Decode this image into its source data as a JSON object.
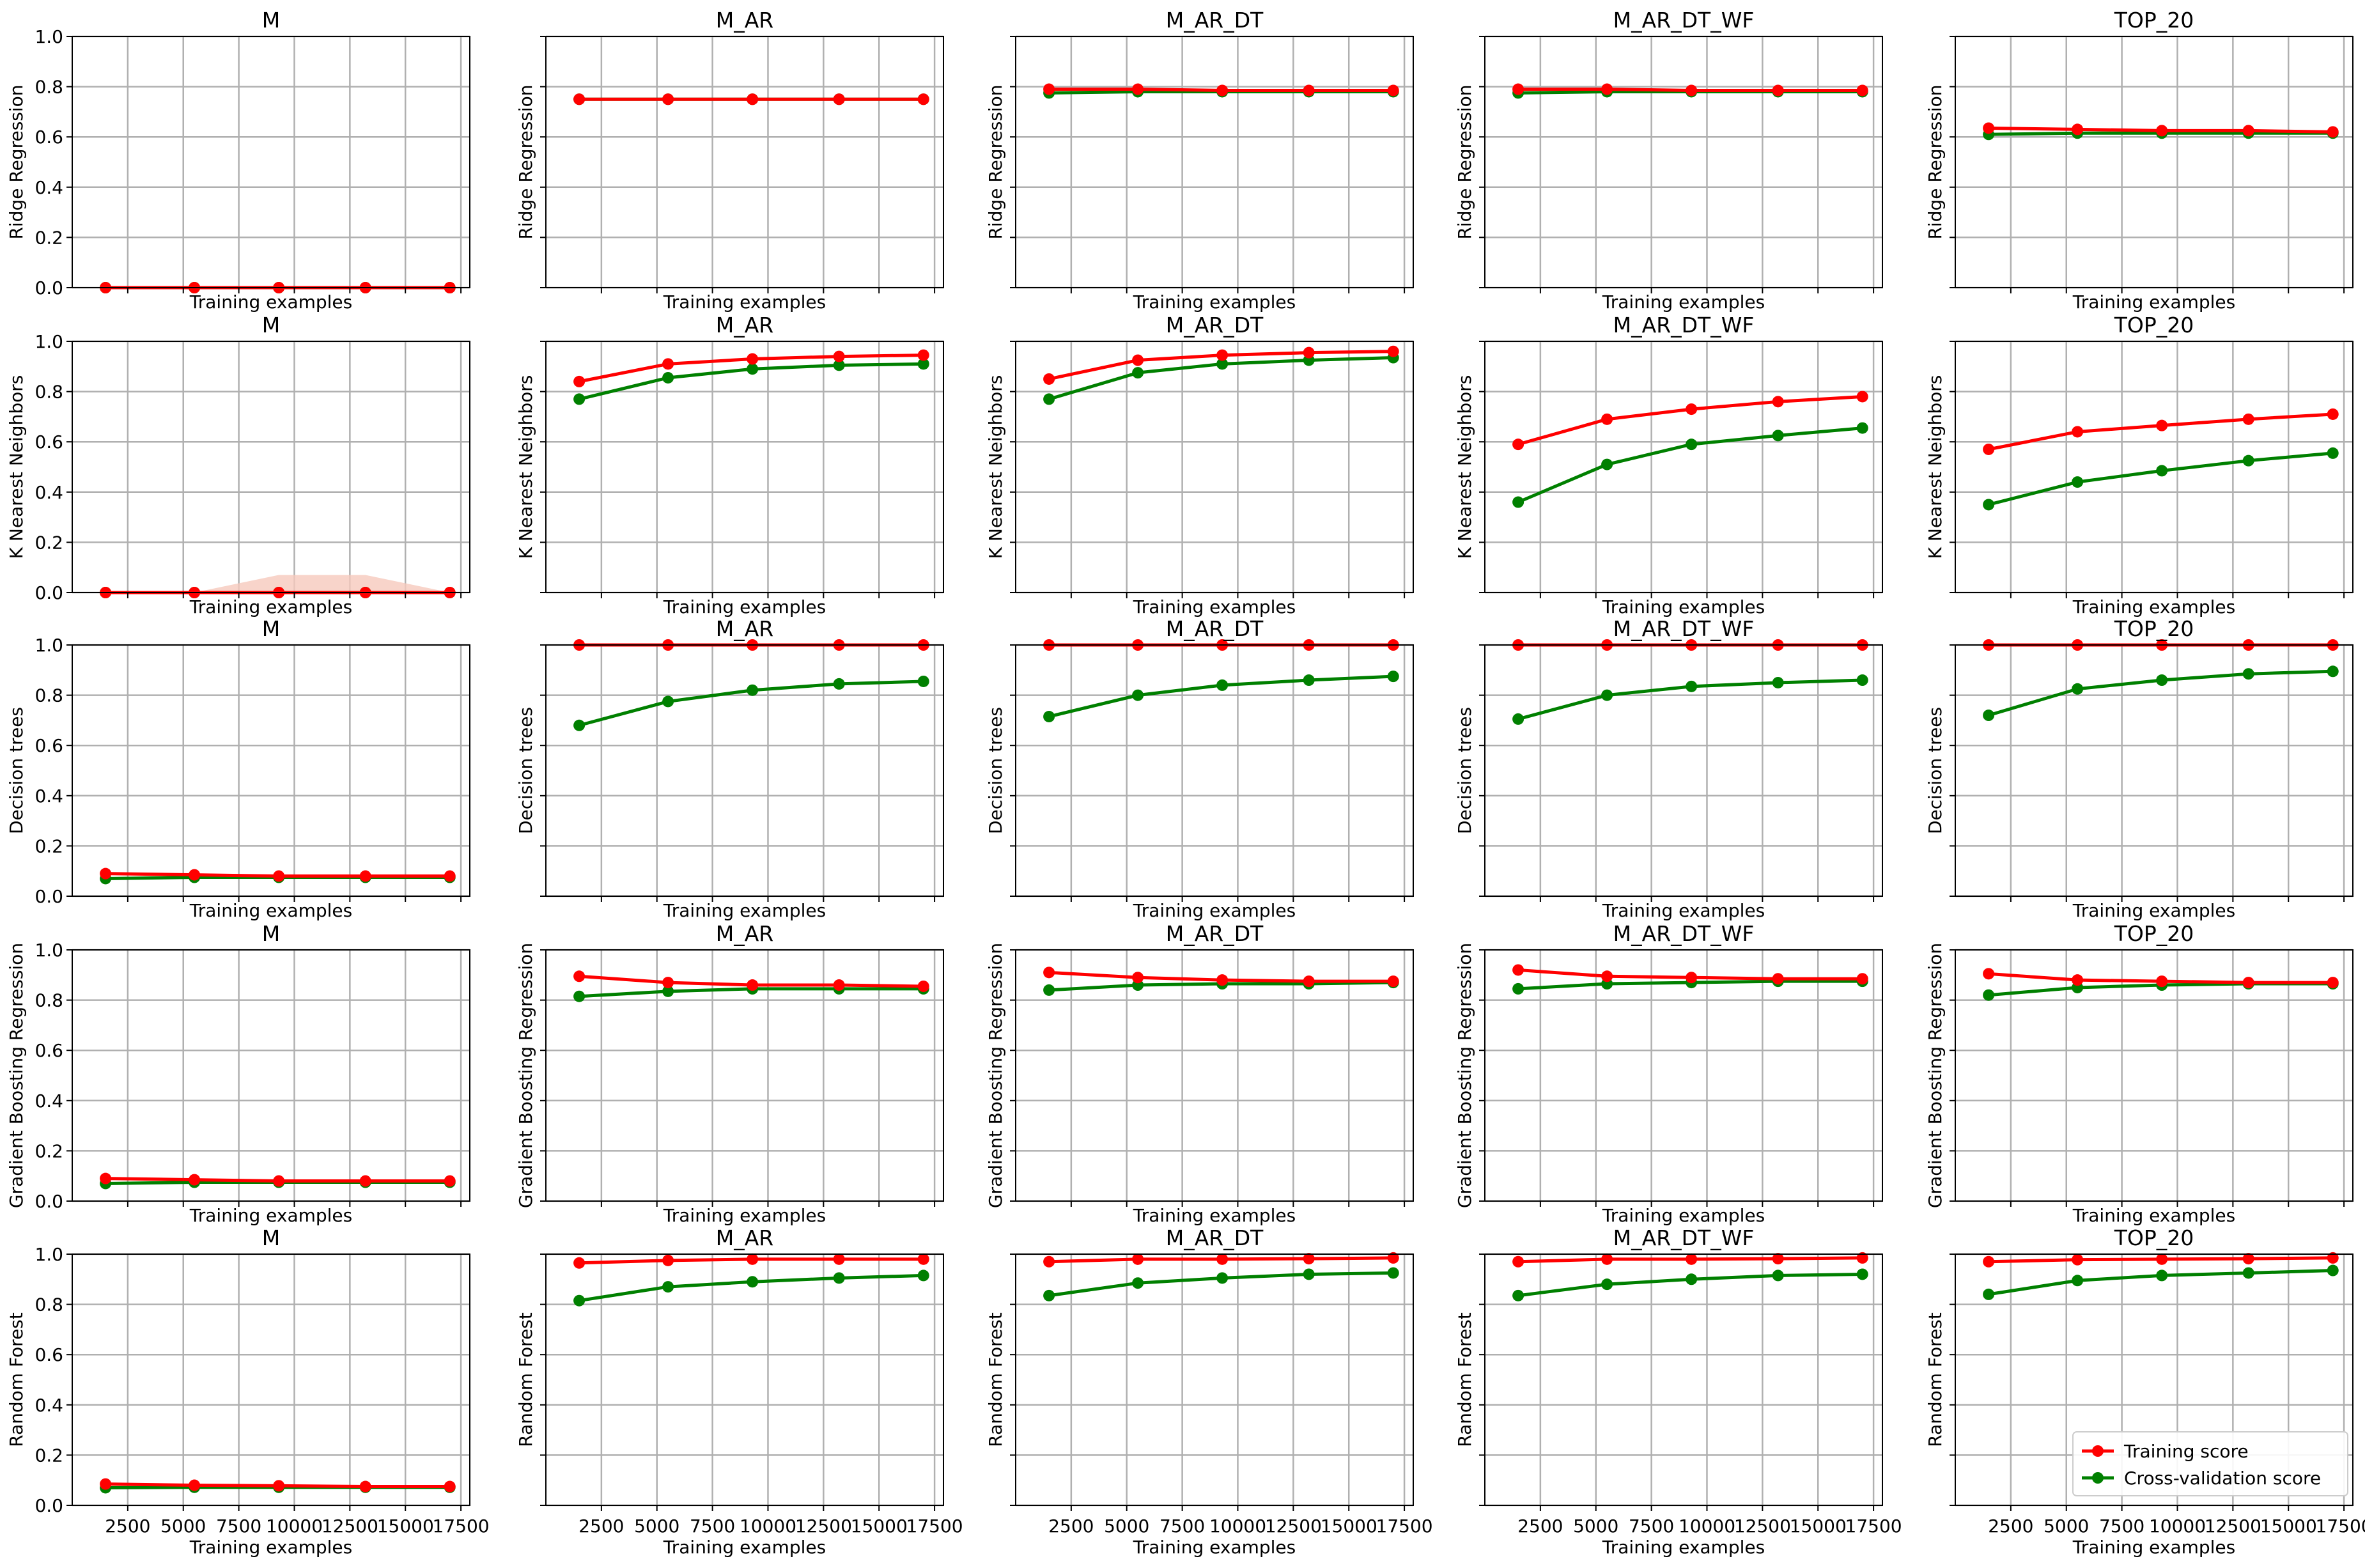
{
  "chart_data": {
    "type": "line",
    "layout": "grid",
    "rows": 5,
    "cols": 5,
    "colors": {
      "train": "#ff0000",
      "cv": "#008000",
      "grid": "#b0b0b0",
      "train_band": "#f6c9bd",
      "cv_band": "#c8e6c8"
    },
    "x": [
      1500,
      5500,
      9300,
      13200,
      17000
    ],
    "xlim": [
      0,
      17900
    ],
    "ylim": [
      0,
      1.0
    ],
    "xticks": [
      2500,
      5000,
      7500,
      10000,
      12500,
      15000,
      17500
    ],
    "yticks": [
      0.0,
      0.2,
      0.4,
      0.6,
      0.8,
      1.0
    ],
    "xticklabels": [
      "2500",
      "5000",
      "7500",
      "10000",
      "12500",
      "15000",
      "17500"
    ],
    "yticklabels": [
      "0.0",
      "0.2",
      "0.4",
      "0.6",
      "0.8",
      "1.0"
    ],
    "xlabel": "Training examples",
    "col_titles": [
      "M",
      "M_AR",
      "M_AR_DT",
      "M_AR_DT_WF",
      "TOP_20"
    ],
    "row_labels": [
      "Ridge Regression",
      "K Nearest Neighbors",
      "Decision trees",
      "Gradient Boosting Regression",
      "Random Forest"
    ],
    "legend": {
      "position": "lower-right",
      "entries": [
        "Training score",
        "Cross-validation score"
      ]
    },
    "panels": [
      [
        {
          "train": [
            0.0,
            0.0,
            0.0,
            0.0,
            0.0
          ],
          "cv": [
            0.0,
            0.0,
            0.0,
            0.0,
            0.0
          ]
        },
        {
          "train": [
            0.75,
            0.75,
            0.75,
            0.75,
            0.75
          ],
          "cv": [
            0.75,
            0.75,
            0.75,
            0.75,
            0.75
          ]
        },
        {
          "train": [
            0.79,
            0.79,
            0.785,
            0.785,
            0.785
          ],
          "cv": [
            0.775,
            0.78,
            0.78,
            0.78,
            0.78
          ]
        },
        {
          "train": [
            0.79,
            0.79,
            0.785,
            0.785,
            0.785
          ],
          "cv": [
            0.775,
            0.78,
            0.78,
            0.78,
            0.78
          ]
        },
        {
          "train": [
            0.635,
            0.63,
            0.625,
            0.625,
            0.62
          ],
          "cv": [
            0.61,
            0.615,
            0.615,
            0.615,
            0.615
          ]
        }
      ],
      [
        {
          "train": [
            0.0,
            0.0,
            0.0,
            0.0,
            0.0
          ],
          "cv": [
            0.0,
            0.0,
            0.0,
            0.0,
            0.0
          ],
          "band": [
            0.0,
            0.0,
            0.07,
            0.07,
            0.0
          ]
        },
        {
          "train": [
            0.84,
            0.91,
            0.93,
            0.94,
            0.945
          ],
          "cv": [
            0.77,
            0.855,
            0.89,
            0.905,
            0.91
          ]
        },
        {
          "train": [
            0.85,
            0.925,
            0.945,
            0.955,
            0.96
          ],
          "cv": [
            0.77,
            0.875,
            0.91,
            0.925,
            0.935
          ]
        },
        {
          "train": [
            0.59,
            0.69,
            0.73,
            0.76,
            0.78
          ],
          "cv": [
            0.36,
            0.51,
            0.59,
            0.625,
            0.655
          ]
        },
        {
          "train": [
            0.57,
            0.64,
            0.665,
            0.69,
            0.71
          ],
          "cv": [
            0.35,
            0.44,
            0.485,
            0.525,
            0.555
          ]
        }
      ],
      [
        {
          "train": [
            0.09,
            0.085,
            0.08,
            0.08,
            0.08
          ],
          "cv": [
            0.07,
            0.075,
            0.075,
            0.075,
            0.075
          ]
        },
        {
          "train": [
            1.0,
            1.0,
            1.0,
            1.0,
            1.0
          ],
          "cv": [
            0.68,
            0.775,
            0.82,
            0.845,
            0.855
          ]
        },
        {
          "train": [
            1.0,
            1.0,
            1.0,
            1.0,
            1.0
          ],
          "cv": [
            0.715,
            0.8,
            0.84,
            0.86,
            0.875
          ]
        },
        {
          "train": [
            1.0,
            1.0,
            1.0,
            1.0,
            1.0
          ],
          "cv": [
            0.705,
            0.8,
            0.835,
            0.85,
            0.86
          ]
        },
        {
          "train": [
            1.0,
            1.0,
            1.0,
            1.0,
            1.0
          ],
          "cv": [
            0.72,
            0.825,
            0.86,
            0.885,
            0.895
          ]
        }
      ],
      [
        {
          "train": [
            0.09,
            0.085,
            0.08,
            0.08,
            0.08
          ],
          "cv": [
            0.07,
            0.075,
            0.075,
            0.075,
            0.075
          ]
        },
        {
          "train": [
            0.895,
            0.87,
            0.86,
            0.86,
            0.855
          ],
          "cv": [
            0.815,
            0.835,
            0.845,
            0.845,
            0.845
          ]
        },
        {
          "train": [
            0.91,
            0.89,
            0.88,
            0.875,
            0.875
          ],
          "cv": [
            0.84,
            0.86,
            0.865,
            0.865,
            0.87
          ]
        },
        {
          "train": [
            0.92,
            0.895,
            0.89,
            0.885,
            0.885
          ],
          "cv": [
            0.845,
            0.865,
            0.87,
            0.875,
            0.875
          ]
        },
        {
          "train": [
            0.905,
            0.88,
            0.875,
            0.87,
            0.87
          ],
          "cv": [
            0.82,
            0.85,
            0.86,
            0.865,
            0.865
          ]
        }
      ],
      [
        {
          "train": [
            0.085,
            0.08,
            0.078,
            0.075,
            0.075
          ],
          "cv": [
            0.07,
            0.072,
            0.072,
            0.072,
            0.072
          ]
        },
        {
          "train": [
            0.965,
            0.975,
            0.98,
            0.98,
            0.98
          ],
          "cv": [
            0.815,
            0.87,
            0.89,
            0.905,
            0.915
          ]
        },
        {
          "train": [
            0.97,
            0.98,
            0.98,
            0.982,
            0.985
          ],
          "cv": [
            0.835,
            0.885,
            0.905,
            0.92,
            0.925
          ]
        },
        {
          "train": [
            0.97,
            0.98,
            0.98,
            0.982,
            0.985
          ],
          "cv": [
            0.835,
            0.88,
            0.9,
            0.915,
            0.92
          ]
        },
        {
          "train": [
            0.97,
            0.978,
            0.98,
            0.982,
            0.985
          ],
          "cv": [
            0.84,
            0.895,
            0.915,
            0.925,
            0.935
          ]
        }
      ]
    ]
  }
}
